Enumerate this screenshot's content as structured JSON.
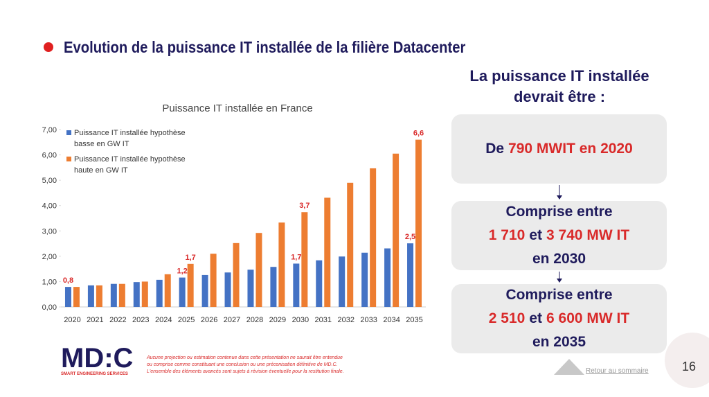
{
  "slide_title": "Evolution de la puissance IT installée de la filière Datacenter",
  "chart_data": {
    "type": "bar",
    "title": "Puissance IT installée en France",
    "categories": [
      "2020",
      "2021",
      "2022",
      "2023",
      "2024",
      "2025",
      "2026",
      "2027",
      "2028",
      "2029",
      "2030",
      "2031",
      "2032",
      "2033",
      "2034",
      "2035"
    ],
    "series": [
      {
        "name": "Puissance IT installée hypothèse basse en GW IT",
        "color": "#4472c4",
        "values": [
          0.79,
          0.85,
          0.91,
          0.98,
          1.07,
          1.16,
          1.26,
          1.36,
          1.47,
          1.58,
          1.71,
          1.84,
          1.99,
          2.14,
          2.31,
          2.51
        ],
        "value_labels": [
          "0,8",
          null,
          null,
          null,
          null,
          "1,2",
          null,
          null,
          null,
          null,
          "1,7",
          null,
          null,
          null,
          null,
          "2,5"
        ]
      },
      {
        "name": "Puissance IT installée hypothèse haute en GW IT",
        "color": "#ed7d31",
        "values": [
          0.79,
          0.85,
          0.91,
          1.0,
          1.29,
          1.7,
          2.1,
          2.52,
          2.92,
          3.33,
          3.74,
          4.31,
          4.9,
          5.47,
          6.05,
          6.6
        ],
        "value_labels": [
          null,
          null,
          null,
          null,
          null,
          "1,7",
          null,
          null,
          null,
          null,
          "3,7",
          null,
          null,
          null,
          null,
          "6,6"
        ]
      }
    ],
    "ylim": [
      0,
      7
    ],
    "yticks": [
      {
        "value": 0,
        "label": "0,00"
      },
      {
        "value": 1,
        "label": "1,00"
      },
      {
        "value": 2,
        "label": "2,00"
      },
      {
        "value": 3,
        "label": "3,00"
      },
      {
        "value": 4,
        "label": "4,00"
      },
      {
        "value": 5,
        "label": "5,00"
      },
      {
        "value": 6,
        "label": "6,00"
      },
      {
        "value": 7,
        "label": "7,00"
      }
    ],
    "grid": false
  },
  "panel": {
    "heading": [
      "La puissance IT installée",
      "devrait être :"
    ],
    "boxes": [
      {
        "lines": [
          [
            "De",
            "790 MWIT en 2020"
          ]
        ]
      },
      {
        "lines": [
          [
            "Comprise entre"
          ],
          [
            "1 710",
            "et",
            "3 740 MW IT"
          ],
          [
            "en 2030"
          ]
        ]
      },
      {
        "lines": [
          [
            "Comprise entre"
          ],
          [
            "2 510",
            "et",
            "6 600 MW IT"
          ],
          [
            "en 2035"
          ]
        ]
      }
    ]
  },
  "footnote": [
    "Aucune projection ou estimation contenue dans cette présentation ne saurait être entendue",
    "ou comprise comme constituant une conclusion ou une préconisation définitive de MD.C.",
    "L'ensemble des éléments avancés sont sujets à révision éventuelle pour la restitution finale."
  ],
  "logo": {
    "name": "MD:C",
    "tagline": "SMART ENGINEERING SERVICES"
  },
  "nav": {
    "back": "Retour au sommaire",
    "page": "16"
  }
}
